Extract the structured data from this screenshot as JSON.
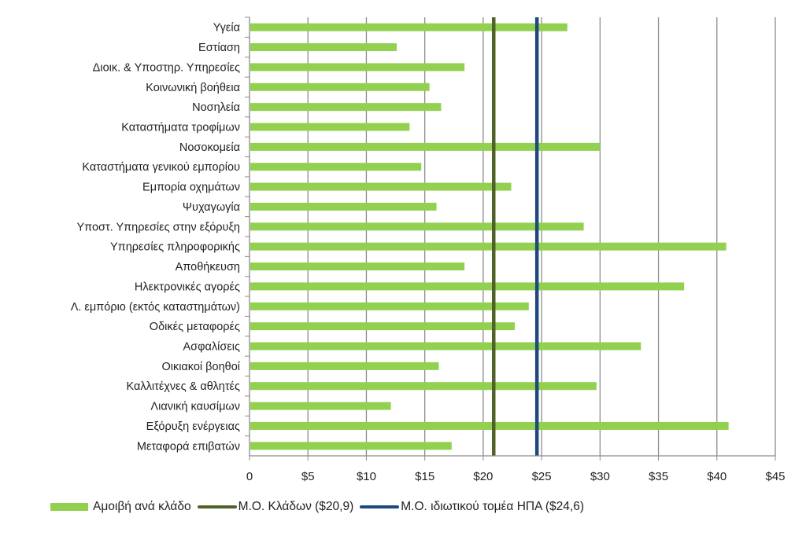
{
  "chart_data": {
    "type": "bar",
    "orientation": "horizontal",
    "title": "",
    "xlabel": "",
    "ylabel": "",
    "xlim": [
      0,
      45
    ],
    "x_ticks": [
      0,
      5,
      10,
      15,
      20,
      25,
      30,
      35,
      40,
      45
    ],
    "x_tick_labels": [
      "0",
      "$5",
      "$10",
      "$15",
      "$20",
      "$25",
      "$30",
      "$35",
      "$40",
      "$45"
    ],
    "grid": "vertical",
    "legend_position": "bottom",
    "categories": [
      "Υγεία",
      "Εστίαση",
      "Διοικ. & Υποστηρ. Υπηρεσίες",
      "Κοινωνική βοήθεια",
      "Νοσηλεία",
      "Καταστήματα τροφίμων",
      "Νοσοκομεία",
      "Καταστήματα γενικού εμπορίου",
      "Εμπορία οχημάτων",
      "Ψυχαγωγία",
      "Υποστ. Υπηρεσίες στην εξόρυξη",
      "Υπηρεσίες πληροφορικής",
      "Αποθήκευση",
      "Ηλεκτρονικές αγορές",
      "Λ. εμπόριο (εκτός καταστημάτων)",
      "Οδικές μεταφορές",
      "Ασφαλίσεις",
      "Οικιακοί βοηθοί",
      "Καλλιτέχνες & αθλητές",
      "Λιανική καυσίμων",
      "Εξόρυξη ενέργειας",
      "Μεταφορά επιβατών"
    ],
    "series": [
      {
        "name": "Αμοιβή ανά κλάδο",
        "color": "#92d050",
        "values": [
          27.2,
          12.6,
          18.4,
          15.4,
          16.4,
          13.7,
          30.0,
          14.7,
          22.4,
          16.0,
          28.6,
          40.8,
          18.4,
          37.2,
          23.9,
          22.7,
          33.5,
          16.2,
          29.7,
          12.1,
          41.0,
          17.3
        ]
      }
    ],
    "reference_lines": [
      {
        "name": "Μ.Ο. Κλάδων ($20,9)",
        "value": 20.9,
        "color": "#4f6228"
      },
      {
        "name": "Μ.Ο. ιδιωτικού τομέα ΗΠΑ ($24,6)",
        "value": 24.6,
        "color": "#1f497d"
      }
    ]
  },
  "legend": {
    "bar_label": "Αμοιβή ανά κλάδο",
    "line1_label": "Μ.Ο. Κλάδων  ($20,9)",
    "line2_label": "Μ.Ο. ιδιωτικού τομέα ΗΠΑ ($24,6)"
  }
}
